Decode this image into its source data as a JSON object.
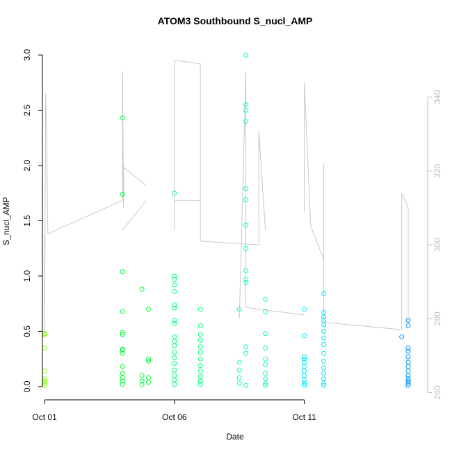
{
  "chart_data": {
    "type": "scatter",
    "title": "ATOM3 Southbound S_nucl_AMP",
    "xlabel": "Date",
    "ylabel": "S_nucl_AMP",
    "x_axis": {
      "type": "date",
      "range": [
        "2016-09-30T22:00",
        "2016-10-15T18:00"
      ],
      "ticks": [
        {
          "value": "2016-10-01T00:00",
          "label": "Oct 01"
        },
        {
          "value": "2016-10-06T00:00",
          "label": "Oct 06"
        },
        {
          "value": "2016-10-11T00:00",
          "label": "Oct 11"
        }
      ]
    },
    "y_left": {
      "range": [
        -0.12,
        3.12
      ],
      "ticks": [
        {
          "value": 0.0,
          "label": "0.0"
        },
        {
          "value": 0.5,
          "label": "0.5"
        },
        {
          "value": 1.0,
          "label": "1.0"
        },
        {
          "value": 1.5,
          "label": "1.5"
        },
        {
          "value": 2.0,
          "label": "2.0"
        },
        {
          "value": 2.5,
          "label": "2.5"
        },
        {
          "value": 3.0,
          "label": "3.0"
        }
      ]
    },
    "y_right": {
      "range": [
        258,
        355
      ],
      "color": "#bdbdbd",
      "ticks": [
        {
          "value": 260,
          "label": "260"
        },
        {
          "value": 280,
          "label": "280"
        },
        {
          "value": 300,
          "label": "300"
        },
        {
          "value": 320,
          "label": "320"
        },
        {
          "value": 340,
          "label": "340"
        }
      ]
    },
    "grid": false,
    "legend": "none",
    "point_style": "open-circle",
    "point_colors": [
      "#7fff00",
      "#00ff33",
      "#00ff7f",
      "#00ffcc",
      "#00e5ff",
      "#0099ff"
    ],
    "line_color": "#c8c8c8",
    "points": [
      {
        "x": "2016-10-01T00:00",
        "y": 0.48
      },
      {
        "x": "2016-10-01T00:00",
        "y": 0.47
      },
      {
        "x": "2016-10-01T00:00",
        "y": 0.35
      },
      {
        "x": "2016-10-01T00:00",
        "y": 0.14
      },
      {
        "x": "2016-10-01T00:00",
        "y": 0.07
      },
      {
        "x": "2016-10-01T00:00",
        "y": 0.05
      },
      {
        "x": "2016-10-01T00:00",
        "y": 0.03
      },
      {
        "x": "2016-10-01T00:00",
        "y": 0.01
      },
      {
        "x": "2016-10-04T00:00",
        "y": 2.43
      },
      {
        "x": "2016-10-04T00:00",
        "y": 1.74
      },
      {
        "x": "2016-10-04T00:00",
        "y": 1.04
      },
      {
        "x": "2016-10-04T00:00",
        "y": 0.68
      },
      {
        "x": "2016-10-04T00:00",
        "y": 0.49
      },
      {
        "x": "2016-10-04T00:00",
        "y": 0.47
      },
      {
        "x": "2016-10-04T00:00",
        "y": 0.34
      },
      {
        "x": "2016-10-04T00:00",
        "y": 0.33
      },
      {
        "x": "2016-10-04T00:00",
        "y": 0.3
      },
      {
        "x": "2016-10-04T00:00",
        "y": 0.18
      },
      {
        "x": "2016-10-04T00:00",
        "y": 0.12
      },
      {
        "x": "2016-10-04T00:00",
        "y": 0.08
      },
      {
        "x": "2016-10-04T00:00",
        "y": 0.05
      },
      {
        "x": "2016-10-04T00:00",
        "y": 0.02
      },
      {
        "x": "2016-10-04T18:00",
        "y": 0.88
      },
      {
        "x": "2016-10-05T00:00",
        "y": 0.7
      },
      {
        "x": "2016-10-05T00:00",
        "y": 0.25
      },
      {
        "x": "2016-10-05T00:00",
        "y": 0.23
      },
      {
        "x": "2016-10-05T00:00",
        "y": 0.08
      },
      {
        "x": "2016-10-05T00:00",
        "y": 0.04
      },
      {
        "x": "2016-10-04T18:00",
        "y": 0.1
      },
      {
        "x": "2016-10-04T18:00",
        "y": 0.05
      },
      {
        "x": "2016-10-04T18:00",
        "y": 0.02
      },
      {
        "x": "2016-10-06T00:00",
        "y": 1.75
      },
      {
        "x": "2016-10-06T00:00",
        "y": 1.0
      },
      {
        "x": "2016-10-06T00:00",
        "y": 0.97
      },
      {
        "x": "2016-10-06T00:00",
        "y": 0.92
      },
      {
        "x": "2016-10-06T00:00",
        "y": 0.86
      },
      {
        "x": "2016-10-06T00:00",
        "y": 0.74
      },
      {
        "x": "2016-10-06T00:00",
        "y": 0.71
      },
      {
        "x": "2016-10-06T00:00",
        "y": 0.6
      },
      {
        "x": "2016-10-06T00:00",
        "y": 0.57
      },
      {
        "x": "2016-10-06T00:00",
        "y": 0.45
      },
      {
        "x": "2016-10-06T00:00",
        "y": 0.41
      },
      {
        "x": "2016-10-06T00:00",
        "y": 0.37
      },
      {
        "x": "2016-10-06T00:00",
        "y": 0.31
      },
      {
        "x": "2016-10-06T00:00",
        "y": 0.26
      },
      {
        "x": "2016-10-06T00:00",
        "y": 0.21
      },
      {
        "x": "2016-10-06T00:00",
        "y": 0.15
      },
      {
        "x": "2016-10-06T00:00",
        "y": 0.1
      },
      {
        "x": "2016-10-06T00:00",
        "y": 0.06
      },
      {
        "x": "2016-10-06T00:00",
        "y": 0.02
      },
      {
        "x": "2016-10-07T00:00",
        "y": 0.7
      },
      {
        "x": "2016-10-07T00:00",
        "y": 0.55
      },
      {
        "x": "2016-10-07T00:00",
        "y": 0.47
      },
      {
        "x": "2016-10-07T00:00",
        "y": 0.42
      },
      {
        "x": "2016-10-07T00:00",
        "y": 0.36
      },
      {
        "x": "2016-10-07T00:00",
        "y": 0.31
      },
      {
        "x": "2016-10-07T00:00",
        "y": 0.25
      },
      {
        "x": "2016-10-07T00:00",
        "y": 0.19
      },
      {
        "x": "2016-10-07T00:00",
        "y": 0.14
      },
      {
        "x": "2016-10-07T00:00",
        "y": 0.09
      },
      {
        "x": "2016-10-07T00:00",
        "y": 0.05
      },
      {
        "x": "2016-10-07T00:00",
        "y": 0.02
      },
      {
        "x": "2016-10-08T18:00",
        "y": 3.0
      },
      {
        "x": "2016-10-08T18:00",
        "y": 2.55
      },
      {
        "x": "2016-10-08T18:00",
        "y": 2.5
      },
      {
        "x": "2016-10-08T18:00",
        "y": 2.4
      },
      {
        "x": "2016-10-08T18:00",
        "y": 1.79
      },
      {
        "x": "2016-10-08T18:00",
        "y": 1.69
      },
      {
        "x": "2016-10-08T18:00",
        "y": 1.46
      },
      {
        "x": "2016-10-08T18:00",
        "y": 1.25
      },
      {
        "x": "2016-10-08T18:00",
        "y": 1.05
      },
      {
        "x": "2016-10-08T18:00",
        "y": 0.97
      },
      {
        "x": "2016-10-08T18:00",
        "y": 0.94
      },
      {
        "x": "2016-10-08T12:00",
        "y": 0.7
      },
      {
        "x": "2016-10-08T18:00",
        "y": 0.36
      },
      {
        "x": "2016-10-08T18:00",
        "y": 0.3
      },
      {
        "x": "2016-10-08T12:00",
        "y": 0.22
      },
      {
        "x": "2016-10-08T12:00",
        "y": 0.15
      },
      {
        "x": "2016-10-08T12:00",
        "y": 0.08
      },
      {
        "x": "2016-10-08T12:00",
        "y": 0.03
      },
      {
        "x": "2016-10-08T18:00",
        "y": 0.01
      },
      {
        "x": "2016-10-09T12:00",
        "y": 0.79
      },
      {
        "x": "2016-10-09T12:00",
        "y": 0.68
      },
      {
        "x": "2016-10-09T12:00",
        "y": 0.48
      },
      {
        "x": "2016-10-09T12:00",
        "y": 0.35
      },
      {
        "x": "2016-10-09T12:00",
        "y": 0.25
      },
      {
        "x": "2016-10-09T12:00",
        "y": 0.2
      },
      {
        "x": "2016-10-09T12:00",
        "y": 0.12
      },
      {
        "x": "2016-10-09T12:00",
        "y": 0.07
      },
      {
        "x": "2016-10-09T12:00",
        "y": 0.03
      },
      {
        "x": "2016-10-09T12:00",
        "y": 0.01
      },
      {
        "x": "2016-10-11T00:00",
        "y": 0.7
      },
      {
        "x": "2016-10-11T00:00",
        "y": 0.46
      },
      {
        "x": "2016-10-11T00:00",
        "y": 0.27
      },
      {
        "x": "2016-10-11T00:00",
        "y": 0.25
      },
      {
        "x": "2016-10-11T00:00",
        "y": 0.22
      },
      {
        "x": "2016-10-11T00:00",
        "y": 0.18
      },
      {
        "x": "2016-10-11T00:00",
        "y": 0.14
      },
      {
        "x": "2016-10-11T00:00",
        "y": 0.1
      },
      {
        "x": "2016-10-11T00:00",
        "y": 0.06
      },
      {
        "x": "2016-10-11T00:00",
        "y": 0.03
      },
      {
        "x": "2016-10-11T00:00",
        "y": 0.01
      },
      {
        "x": "2016-10-11T18:00",
        "y": 0.84
      },
      {
        "x": "2016-10-11T18:00",
        "y": 0.67
      },
      {
        "x": "2016-10-11T18:00",
        "y": 0.63
      },
      {
        "x": "2016-10-11T18:00",
        "y": 0.6
      },
      {
        "x": "2016-10-11T18:00",
        "y": 0.56
      },
      {
        "x": "2016-10-11T18:00",
        "y": 0.5
      },
      {
        "x": "2016-10-11T18:00",
        "y": 0.44
      },
      {
        "x": "2016-10-11T18:00",
        "y": 0.38
      },
      {
        "x": "2016-10-11T18:00",
        "y": 0.3
      },
      {
        "x": "2016-10-11T18:00",
        "y": 0.23
      },
      {
        "x": "2016-10-11T18:00",
        "y": 0.17
      },
      {
        "x": "2016-10-11T18:00",
        "y": 0.12
      },
      {
        "x": "2016-10-11T18:00",
        "y": 0.07
      },
      {
        "x": "2016-10-11T18:00",
        "y": 0.03
      },
      {
        "x": "2016-10-11T18:00",
        "y": 0.01
      },
      {
        "x": "2016-10-15T00:00",
        "y": 0.6
      },
      {
        "x": "2016-10-15T00:00",
        "y": 0.55
      },
      {
        "x": "2016-10-14T18:00",
        "y": 0.45
      },
      {
        "x": "2016-10-15T00:00",
        "y": 0.35
      },
      {
        "x": "2016-10-15T00:00",
        "y": 0.32
      },
      {
        "x": "2016-10-15T00:00",
        "y": 0.27
      },
      {
        "x": "2016-10-15T00:00",
        "y": 0.22
      },
      {
        "x": "2016-10-15T00:00",
        "y": 0.18
      },
      {
        "x": "2016-10-15T00:00",
        "y": 0.14
      },
      {
        "x": "2016-10-15T00:00",
        "y": 0.1
      },
      {
        "x": "2016-10-15T00:00",
        "y": 0.07
      },
      {
        "x": "2016-10-15T00:00",
        "y": 0.05
      },
      {
        "x": "2016-10-15T00:00",
        "y": 0.03
      },
      {
        "x": "2016-10-15T00:00",
        "y": 0.01
      }
    ],
    "secondary_line_segments": [
      [
        [
          "2016-10-01T00:00",
          303
        ],
        [
          "2016-10-01T00:00",
          275
        ],
        [
          "2016-10-01T01:00",
          341
        ],
        [
          "2016-10-01T02:00",
          330
        ],
        [
          "2016-10-01T03:00",
          303
        ]
      ],
      [
        [
          "2016-10-01T03:00",
          303
        ],
        [
          "2016-10-04T00:00",
          312
        ]
      ],
      [
        [
          "2016-10-04T00:00",
          312
        ],
        [
          "2016-10-04T00:00",
          347
        ],
        [
          "2016-10-04T01:00",
          310
        ],
        [
          "2016-10-04T01:00",
          321
        ]
      ],
      [
        [
          "2016-10-04T01:00",
          321
        ],
        [
          "2016-10-04T22:00",
          316
        ]
      ],
      [
        [
          "2016-10-04T00:00",
          304
        ],
        [
          "2016-10-04T22:00",
          312
        ]
      ],
      [
        [
          "2016-10-06T00:00",
          304
        ],
        [
          "2016-10-06T00:00",
          350
        ],
        [
          "2016-10-07T00:00",
          349
        ],
        [
          "2016-10-07T00:00",
          301
        ]
      ],
      [
        [
          "2016-10-06T00:00",
          312
        ],
        [
          "2016-10-07T00:00",
          312
        ]
      ],
      [
        [
          "2016-10-07T00:00",
          301
        ],
        [
          "2016-10-09T06:00",
          300
        ]
      ],
      [
        [
          "2016-10-08T12:00",
          280
        ],
        [
          "2016-10-08T18:00",
          347
        ],
        [
          "2016-10-08T18:00",
          283
        ]
      ],
      [
        [
          "2016-10-08T18:00",
          283
        ],
        [
          "2016-10-11T00:00",
          281
        ]
      ],
      [
        [
          "2016-10-09T06:00",
          300
        ],
        [
          "2016-10-09T06:00",
          331
        ],
        [
          "2016-10-09T12:00",
          304
        ]
      ],
      [
        [
          "2016-10-11T00:00",
          309
        ],
        [
          "2016-10-11T00:00",
          344
        ],
        [
          "2016-10-11T06:00",
          305
        ],
        [
          "2016-10-11T18:00",
          296
        ]
      ],
      [
        [
          "2016-10-11T18:00",
          296
        ],
        [
          "2016-10-11T18:00",
          322
        ],
        [
          "2016-10-11T18:00",
          279
        ]
      ],
      [
        [
          "2016-10-11T18:00",
          279
        ],
        [
          "2016-10-14T18:00",
          277
        ]
      ],
      [
        [
          "2016-10-14T18:00",
          277
        ],
        [
          "2016-10-14T18:00",
          314
        ],
        [
          "2016-10-15T00:00",
          310
        ],
        [
          "2016-10-15T00:00",
          279
        ]
      ]
    ]
  }
}
